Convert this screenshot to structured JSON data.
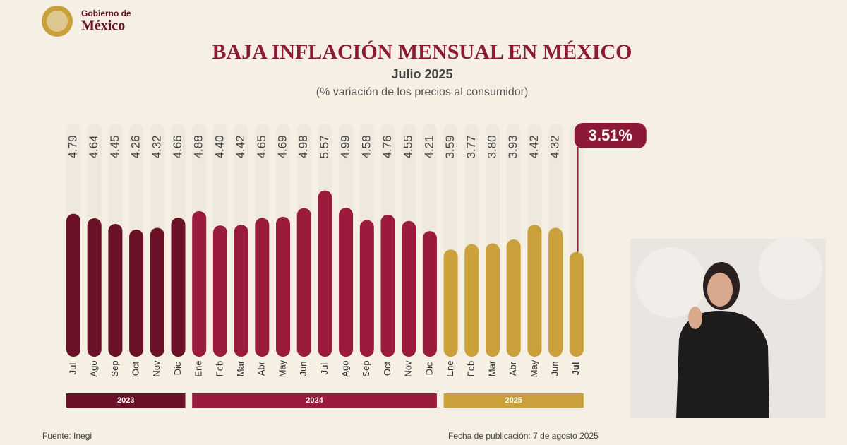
{
  "header": {
    "logo_line1": "Gobierno de",
    "logo_line2": "México"
  },
  "chart_data": {
    "type": "bar",
    "title": "BAJA INFLACIÓN MENSUAL EN MÉXICO",
    "subtitle": "Julio 2025",
    "unit_note": "(% variación de los precios al consumidor)",
    "ylim": [
      0,
      8
    ],
    "groups": [
      {
        "name": "2023",
        "color": "#6b1127",
        "categories": [
          "Jul",
          "Ago",
          "Sep",
          "Oct",
          "Nov",
          "Dic"
        ],
        "values": [
          4.79,
          4.64,
          4.45,
          4.26,
          4.32,
          4.66
        ],
        "value_labels": [
          "4.79",
          "4.64",
          "4.45",
          "4.26",
          "4.32",
          "4.66"
        ]
      },
      {
        "name": "2024",
        "color": "#9b1b3c",
        "categories": [
          "Ene",
          "Feb",
          "Mar",
          "Abr",
          "May",
          "Jun",
          "Jul",
          "Ago",
          "Sep",
          "Oct",
          "Nov",
          "Dic"
        ],
        "values": [
          4.88,
          4.4,
          4.42,
          4.65,
          4.69,
          4.98,
          5.57,
          4.99,
          4.58,
          4.76,
          4.55,
          4.21
        ],
        "value_labels": [
          "4.88",
          "4.40",
          "4.42",
          "4.65",
          "4.69",
          "4.98",
          "5.57",
          "4.99",
          "4.58",
          "4.76",
          "4.55",
          "4.21"
        ]
      },
      {
        "name": "2025",
        "color": "#c9a03a",
        "categories": [
          "Ene",
          "Feb",
          "Mar",
          "Abr",
          "May",
          "Jun",
          "Jul"
        ],
        "values": [
          3.59,
          3.77,
          3.8,
          3.93,
          4.42,
          4.32,
          3.51
        ],
        "value_labels": [
          "3.59",
          "3.77",
          "3.80",
          "3.93",
          "4.42",
          "4.32",
          "3.51%"
        ]
      }
    ],
    "source": "Fuente: Inegi",
    "published": "Fecha de publicación: 7 de agosto 2025"
  }
}
